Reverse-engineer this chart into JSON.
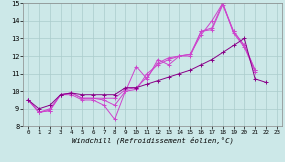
{
  "xlabel": "Windchill (Refroidissement éolien,°C)",
  "background_color": "#cce8e8",
  "grid_color": "#aacccc",
  "line_color": "#cc44cc",
  "line_color2": "#880088",
  "xlim": [
    -0.5,
    23.5
  ],
  "ylim": [
    8,
    15
  ],
  "yticks": [
    8,
    9,
    10,
    11,
    12,
    13,
    14,
    15
  ],
  "xticks": [
    0,
    1,
    2,
    3,
    4,
    5,
    6,
    7,
    8,
    9,
    10,
    11,
    12,
    13,
    14,
    15,
    16,
    17,
    18,
    19,
    20,
    21,
    22,
    23
  ],
  "series": [
    {
      "x": [
        0,
        1,
        2,
        3,
        4,
        5,
        6,
        7,
        8,
        9,
        10,
        11,
        12,
        13,
        14,
        15,
        16,
        17,
        18,
        19,
        20,
        21
      ],
      "y": [
        9.5,
        8.8,
        8.9,
        9.8,
        9.8,
        9.5,
        9.5,
        9.2,
        8.4,
        10.0,
        11.4,
        10.7,
        11.8,
        11.5,
        12.0,
        12.1,
        13.2,
        14.0,
        15.0,
        13.3,
        12.5,
        11.1
      ]
    },
    {
      "x": [
        0,
        1,
        2,
        3,
        4,
        5,
        6,
        7,
        8,
        9,
        10,
        11,
        12,
        13,
        14,
        15,
        16,
        17,
        18,
        19,
        20,
        21
      ],
      "y": [
        9.5,
        8.8,
        9.0,
        9.8,
        9.9,
        9.6,
        9.6,
        9.5,
        9.2,
        10.0,
        10.1,
        11.0,
        11.5,
        11.8,
        12.0,
        12.0,
        13.4,
        13.5,
        14.9,
        13.4,
        12.6,
        11.2
      ]
    },
    {
      "x": [
        0,
        1,
        2,
        3,
        4,
        5,
        6,
        7,
        8,
        9,
        10,
        11,
        12,
        13,
        14,
        15,
        16,
        17,
        18,
        19,
        20,
        21
      ],
      "y": [
        9.5,
        8.8,
        8.9,
        9.8,
        9.9,
        9.6,
        9.6,
        9.6,
        9.6,
        10.1,
        10.2,
        10.8,
        11.6,
        11.9,
        12.0,
        12.1,
        13.4,
        13.6,
        15.0,
        13.4,
        12.6,
        11.2
      ]
    },
    {
      "x": [
        0,
        1,
        2,
        3,
        4,
        5,
        6,
        7,
        8,
        9,
        10,
        11,
        12,
        13,
        14,
        15,
        16,
        17,
        18,
        19,
        20,
        21,
        22
      ],
      "y": [
        9.5,
        9.0,
        9.2,
        9.8,
        9.9,
        9.8,
        9.8,
        9.8,
        9.8,
        10.2,
        10.2,
        10.4,
        10.6,
        10.8,
        11.0,
        11.2,
        11.5,
        11.8,
        12.2,
        12.6,
        13.0,
        10.7,
        10.5
      ]
    }
  ]
}
